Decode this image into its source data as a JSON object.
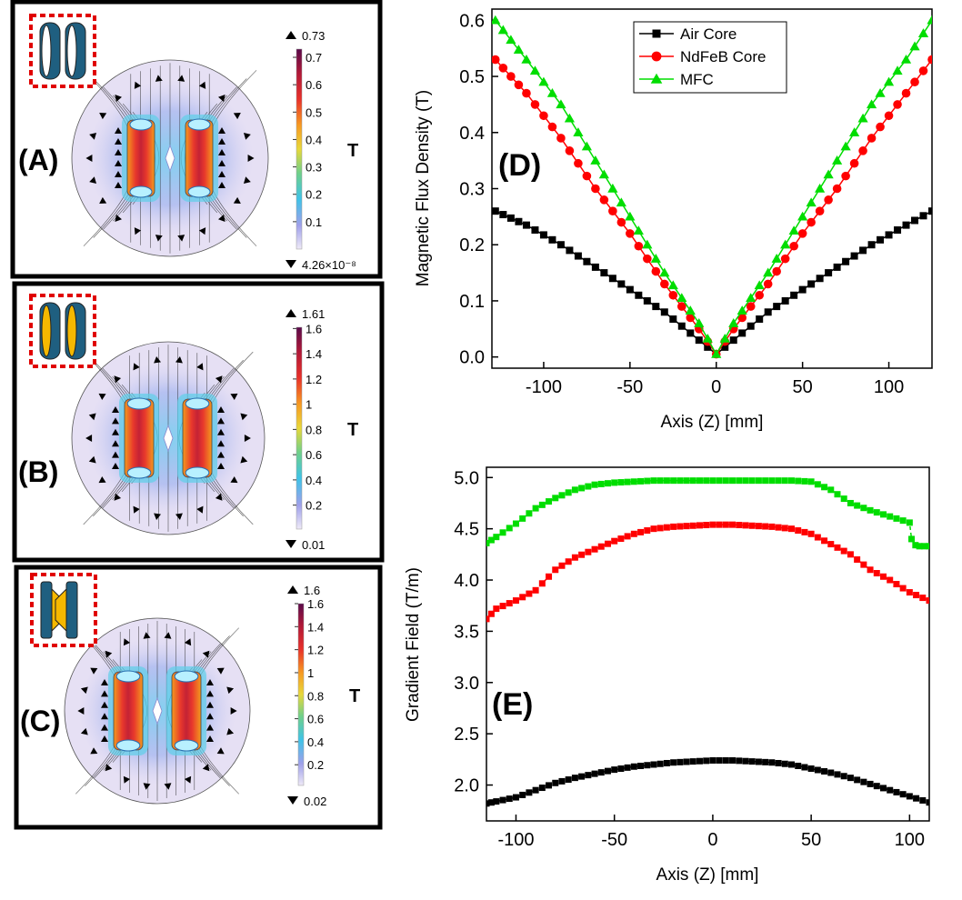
{
  "left_panels": [
    {
      "label": "(A)",
      "core": "air",
      "max_label": "0.73",
      "min_label": "4.26×10⁻⁸",
      "unit": "T",
      "ticks": [
        "0.7",
        "0.6",
        "0.5",
        "0.4",
        "0.3",
        "0.2",
        "0.1"
      ],
      "tick_values": [
        0.7,
        0.6,
        0.5,
        0.4,
        0.3,
        0.2,
        0.1
      ],
      "range": [
        0,
        0.73
      ]
    },
    {
      "label": "(B)",
      "core": "ndfeb",
      "max_label": "1.61",
      "min_label": "0.01",
      "unit": "T",
      "ticks": [
        "1.6",
        "1.4",
        "1.2",
        "1",
        "0.8",
        "0.6",
        "0.4",
        "0.2"
      ],
      "tick_values": [
        1.6,
        1.4,
        1.2,
        1.0,
        0.8,
        0.6,
        0.4,
        0.2
      ],
      "range": [
        0.01,
        1.61
      ]
    },
    {
      "label": "(C)",
      "core": "mfc",
      "max_label": "1.6",
      "min_label": "0.02",
      "unit": "T",
      "ticks": [
        "1.6",
        "1.4",
        "1.2",
        "1",
        "0.8",
        "0.6",
        "0.4",
        "0.2"
      ],
      "tick_values": [
        1.6,
        1.4,
        1.2,
        1.0,
        0.8,
        0.6,
        0.4,
        0.2
      ],
      "range": [
        0.02,
        1.6
      ]
    }
  ],
  "colors": {
    "air_core": "#000000",
    "ndfeb_core": "#ff0000",
    "mfc": "#00dd00",
    "coil": "#1f5f80",
    "core_fill": "#f5b800",
    "inset_border": "#e00000"
  },
  "chart_data": [
    {
      "panel_label": "(D)",
      "type": "line",
      "xlabel": "Axis (Z) [mm]",
      "ylabel": "Magnetic Flux Density (T)",
      "xlim": [
        -130,
        125
      ],
      "ylim": [
        -0.02,
        0.62
      ],
      "xticks": [
        -100,
        -50,
        0,
        50,
        100
      ],
      "xtick_labels": [
        "-100",
        "-50",
        "0",
        "50",
        "100"
      ],
      "yticks": [
        0.0,
        0.1,
        0.2,
        0.3,
        0.4,
        0.5,
        0.6
      ],
      "ytick_labels": [
        "0.0",
        "0.1",
        "0.2",
        "0.3",
        "0.4",
        "0.5",
        "0.6"
      ],
      "legend_position": "top-center",
      "series": [
        {
          "name": "Air Core",
          "marker": "square",
          "color": "#000000",
          "x": [
            -128,
            -110,
            -90,
            -70,
            -50,
            -30,
            -10,
            0,
            10,
            30,
            50,
            70,
            90,
            110,
            125
          ],
          "y": [
            0.26,
            0.235,
            0.2,
            0.16,
            0.12,
            0.08,
            0.03,
            0.005,
            0.03,
            0.08,
            0.12,
            0.16,
            0.2,
            0.235,
            0.26
          ]
        },
        {
          "name": "NdFeB Core",
          "marker": "circle",
          "color": "#ff0000",
          "x": [
            -128,
            -110,
            -90,
            -70,
            -50,
            -30,
            -10,
            0,
            10,
            30,
            50,
            70,
            90,
            110,
            125
          ],
          "y": [
            0.53,
            0.47,
            0.39,
            0.3,
            0.22,
            0.13,
            0.05,
            0.005,
            0.05,
            0.13,
            0.22,
            0.3,
            0.39,
            0.47,
            0.53
          ]
        },
        {
          "name": "MFC",
          "marker": "triangle",
          "color": "#00dd00",
          "x": [
            -128,
            -110,
            -90,
            -70,
            -50,
            -30,
            -10,
            0,
            10,
            30,
            50,
            70,
            90,
            110,
            125
          ],
          "y": [
            0.6,
            0.53,
            0.45,
            0.35,
            0.25,
            0.15,
            0.06,
            0.005,
            0.06,
            0.15,
            0.25,
            0.35,
            0.45,
            0.53,
            0.6
          ]
        }
      ]
    },
    {
      "panel_label": "(E)",
      "type": "line",
      "xlabel": "Axis (Z) [mm]",
      "ylabel": "Gradient Field (T/m)",
      "xlim": [
        -115,
        110
      ],
      "ylim": [
        1.65,
        5.1
      ],
      "xticks": [
        -100,
        -50,
        0,
        50,
        100
      ],
      "xtick_labels": [
        "-100",
        "-50",
        "0",
        "50",
        "100"
      ],
      "yticks": [
        2.0,
        2.5,
        3.0,
        3.5,
        4.0,
        4.5,
        5.0
      ],
      "ytick_labels": [
        "2.0",
        "2.5",
        "3.0",
        "3.5",
        "4.0",
        "4.5",
        "5.0"
      ],
      "series": [
        {
          "name": "MFC",
          "marker": "square",
          "color": "#00dd00",
          "x": [
            -115,
            -110,
            -100,
            -90,
            -80,
            -70,
            -60,
            -50,
            -40,
            -30,
            -20,
            -10,
            0,
            10,
            20,
            30,
            40,
            50,
            60,
            70,
            80,
            90,
            100,
            101,
            103,
            105,
            110
          ],
          "y": [
            4.36,
            4.42,
            4.55,
            4.7,
            4.8,
            4.88,
            4.93,
            4.95,
            4.96,
            4.97,
            4.97,
            4.97,
            4.97,
            4.97,
            4.97,
            4.97,
            4.97,
            4.96,
            4.88,
            4.75,
            4.68,
            4.62,
            4.56,
            4.4,
            4.34,
            4.33,
            4.33
          ]
        },
        {
          "name": "NdFeB Core",
          "marker": "square",
          "color": "#ff0000",
          "x": [
            -115,
            -110,
            -100,
            -90,
            -80,
            -70,
            -60,
            -50,
            -40,
            -30,
            -20,
            -10,
            0,
            10,
            20,
            30,
            40,
            50,
            60,
            70,
            80,
            90,
            100,
            110
          ],
          "y": [
            3.62,
            3.72,
            3.8,
            3.9,
            4.1,
            4.22,
            4.3,
            4.38,
            4.45,
            4.5,
            4.52,
            4.53,
            4.54,
            4.54,
            4.53,
            4.52,
            4.5,
            4.45,
            4.35,
            4.25,
            4.1,
            4.0,
            3.88,
            3.8
          ]
        },
        {
          "name": "Air Core",
          "marker": "square",
          "color": "#000000",
          "x": [
            -115,
            -110,
            -100,
            -90,
            -80,
            -70,
            -60,
            -50,
            -40,
            -30,
            -20,
            -10,
            0,
            10,
            20,
            30,
            40,
            50,
            60,
            70,
            80,
            90,
            100,
            110
          ],
          "y": [
            1.82,
            1.84,
            1.88,
            1.95,
            2.02,
            2.07,
            2.11,
            2.15,
            2.18,
            2.2,
            2.22,
            2.23,
            2.24,
            2.24,
            2.23,
            2.22,
            2.2,
            2.16,
            2.12,
            2.07,
            2.01,
            1.95,
            1.89,
            1.83
          ]
        }
      ]
    }
  ]
}
